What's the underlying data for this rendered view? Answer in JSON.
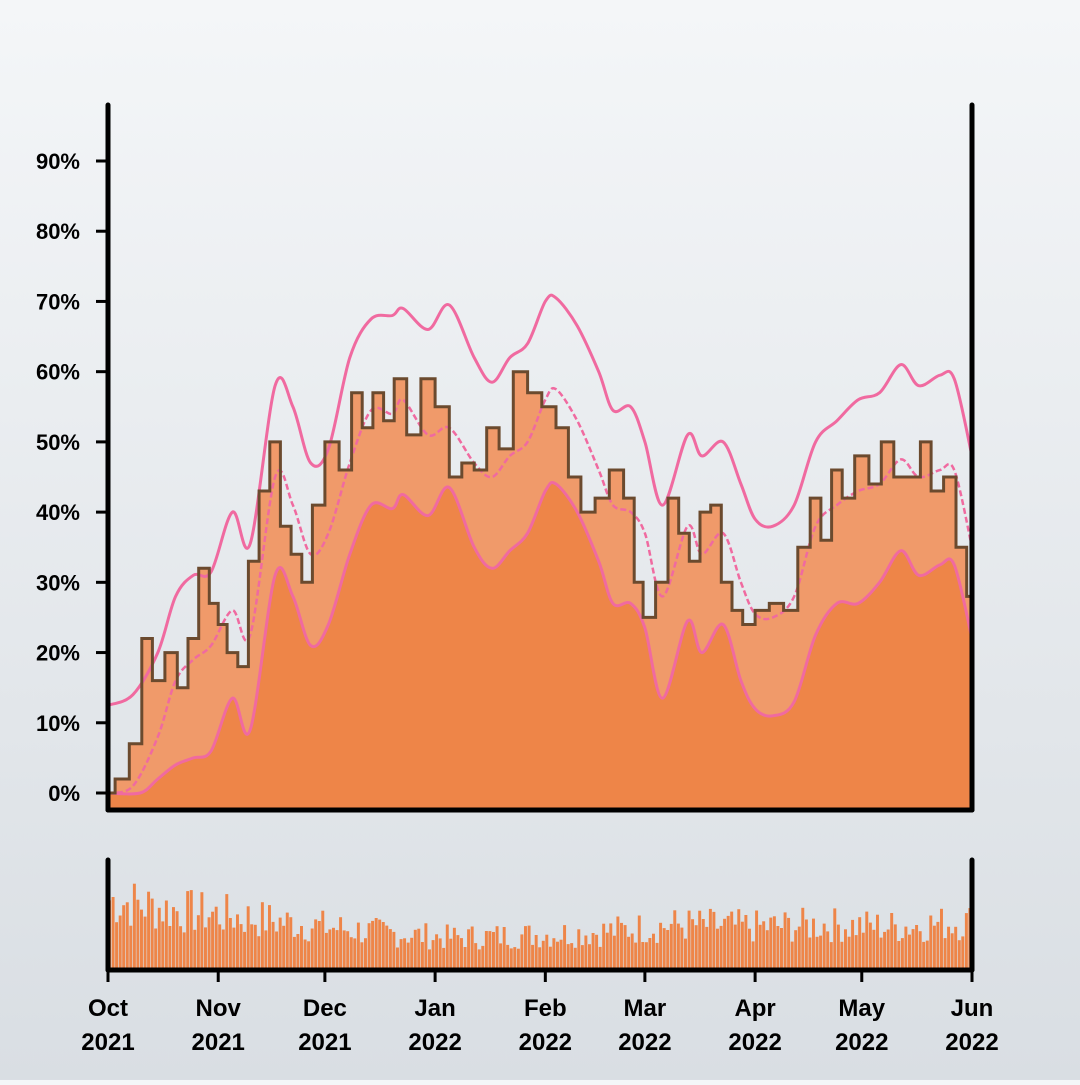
{
  "chart_data": {
    "type": "area",
    "x_range": [
      "2021-10-01",
      "2022-06-01"
    ],
    "ylim": [
      0,
      0.97
    ],
    "y_ticks": [
      0,
      0.1,
      0.2,
      0.3,
      0.4,
      0.5,
      0.6,
      0.7,
      0.8,
      0.9
    ],
    "y_tick_labels": [
      "0%",
      "10%",
      "20%",
      "30%",
      "40%",
      "50%",
      "60%",
      "70%",
      "80%",
      "90%"
    ],
    "x_ticks": [
      {
        "date": "2021-10-01",
        "month": "Oct",
        "year": "2021"
      },
      {
        "date": "2021-11-01",
        "month": "Nov",
        "year": "2021"
      },
      {
        "date": "2021-12-01",
        "month": "Dec",
        "year": "2021"
      },
      {
        "date": "2022-01-01",
        "month": "Jan",
        "year": "2022"
      },
      {
        "date": "2022-02-01",
        "month": "Feb",
        "year": "2022"
      },
      {
        "date": "2022-03-01",
        "month": "Mar",
        "year": "2022"
      },
      {
        "date": "2022-04-01",
        "month": "Apr",
        "year": "2022"
      },
      {
        "date": "2022-05-01",
        "month": "May",
        "year": "2022"
      },
      {
        "date": "2022-06-01",
        "month": "Jun",
        "year": "2022"
      }
    ],
    "grid": false,
    "colors": {
      "band_inner": "#ee8548",
      "band_outer": "#f09a6a",
      "envelope_line": "#f06aa0",
      "observed_line": "#6b4a2e",
      "volume_bars": "#ee8548"
    },
    "series": [
      {
        "role": "upper_envelope",
        "points": [
          [
            "2021-10-01",
            0.125
          ],
          [
            "2021-10-08",
            0.14
          ],
          [
            "2021-10-15",
            0.2
          ],
          [
            "2021-10-20",
            0.28
          ],
          [
            "2021-10-25",
            0.31
          ],
          [
            "2021-10-30",
            0.315
          ],
          [
            "2021-11-05",
            0.4
          ],
          [
            "2021-11-10",
            0.355
          ],
          [
            "2021-11-17",
            0.58
          ],
          [
            "2021-11-22",
            0.55
          ],
          [
            "2021-11-27",
            0.47
          ],
          [
            "2021-12-02",
            0.49
          ],
          [
            "2021-12-08",
            0.62
          ],
          [
            "2021-12-14",
            0.675
          ],
          [
            "2021-12-20",
            0.68
          ],
          [
            "2021-12-23",
            0.69
          ],
          [
            "2021-12-30",
            0.66
          ],
          [
            "2022-01-05",
            0.695
          ],
          [
            "2022-01-12",
            0.62
          ],
          [
            "2022-01-17",
            0.585
          ],
          [
            "2022-01-22",
            0.62
          ],
          [
            "2022-01-27",
            0.64
          ],
          [
            "2022-02-01",
            0.7
          ],
          [
            "2022-02-04",
            0.705
          ],
          [
            "2022-02-10",
            0.665
          ],
          [
            "2022-02-16",
            0.6
          ],
          [
            "2022-02-20",
            0.545
          ],
          [
            "2022-02-25",
            0.55
          ],
          [
            "2022-03-01",
            0.5
          ],
          [
            "2022-03-06",
            0.41
          ],
          [
            "2022-03-13",
            0.51
          ],
          [
            "2022-03-17",
            0.48
          ],
          [
            "2022-03-23",
            0.5
          ],
          [
            "2022-03-28",
            0.44
          ],
          [
            "2022-04-01",
            0.39
          ],
          [
            "2022-04-06",
            0.38
          ],
          [
            "2022-04-12",
            0.41
          ],
          [
            "2022-04-18",
            0.5
          ],
          [
            "2022-04-24",
            0.53
          ],
          [
            "2022-04-30",
            0.56
          ],
          [
            "2022-05-06",
            0.57
          ],
          [
            "2022-05-12",
            0.61
          ],
          [
            "2022-05-17",
            0.58
          ],
          [
            "2022-05-23",
            0.595
          ],
          [
            "2022-05-27",
            0.59
          ],
          [
            "2022-06-01",
            0.48
          ]
        ]
      },
      {
        "role": "outer_band_top",
        "points": [
          [
            "2021-10-01",
            0.0
          ],
          [
            "2021-10-08",
            0.01
          ],
          [
            "2021-10-15",
            0.08
          ],
          [
            "2021-10-20",
            0.16
          ],
          [
            "2021-10-25",
            0.19
          ],
          [
            "2021-10-30",
            0.21
          ],
          [
            "2021-11-05",
            0.26
          ],
          [
            "2021-11-10",
            0.225
          ],
          [
            "2021-11-17",
            0.45
          ],
          [
            "2021-11-22",
            0.41
          ],
          [
            "2021-11-27",
            0.34
          ],
          [
            "2021-12-02",
            0.37
          ],
          [
            "2021-12-08",
            0.47
          ],
          [
            "2021-12-14",
            0.545
          ],
          [
            "2021-12-20",
            0.54
          ],
          [
            "2021-12-23",
            0.56
          ],
          [
            "2021-12-30",
            0.51
          ],
          [
            "2022-01-05",
            0.52
          ],
          [
            "2022-01-12",
            0.47
          ],
          [
            "2022-01-17",
            0.45
          ],
          [
            "2022-01-22",
            0.48
          ],
          [
            "2022-01-27",
            0.5
          ],
          [
            "2022-02-01",
            0.56
          ],
          [
            "2022-02-04",
            0.575
          ],
          [
            "2022-02-10",
            0.53
          ],
          [
            "2022-02-16",
            0.46
          ],
          [
            "2022-02-20",
            0.41
          ],
          [
            "2022-02-25",
            0.4
          ],
          [
            "2022-03-01",
            0.37
          ],
          [
            "2022-03-06",
            0.28
          ],
          [
            "2022-03-13",
            0.38
          ],
          [
            "2022-03-17",
            0.34
          ],
          [
            "2022-03-23",
            0.37
          ],
          [
            "2022-03-28",
            0.3
          ],
          [
            "2022-04-01",
            0.255
          ],
          [
            "2022-04-06",
            0.25
          ],
          [
            "2022-04-12",
            0.28
          ],
          [
            "2022-04-18",
            0.38
          ],
          [
            "2022-04-24",
            0.41
          ],
          [
            "2022-04-30",
            0.43
          ],
          [
            "2022-05-06",
            0.44
          ],
          [
            "2022-05-12",
            0.475
          ],
          [
            "2022-05-17",
            0.45
          ],
          [
            "2022-05-23",
            0.46
          ],
          [
            "2022-05-27",
            0.46
          ],
          [
            "2022-06-01",
            0.35
          ]
        ]
      },
      {
        "role": "inner_band_top",
        "points": [
          [
            "2021-10-01",
            0.0
          ],
          [
            "2021-10-10",
            0.0
          ],
          [
            "2021-10-15",
            0.02
          ],
          [
            "2021-10-20",
            0.04
          ],
          [
            "2021-10-25",
            0.05
          ],
          [
            "2021-10-30",
            0.06
          ],
          [
            "2021-11-05",
            0.135
          ],
          [
            "2021-11-10",
            0.09
          ],
          [
            "2021-11-17",
            0.31
          ],
          [
            "2021-11-22",
            0.28
          ],
          [
            "2021-11-27",
            0.21
          ],
          [
            "2021-12-02",
            0.24
          ],
          [
            "2021-12-08",
            0.34
          ],
          [
            "2021-12-14",
            0.41
          ],
          [
            "2021-12-20",
            0.405
          ],
          [
            "2021-12-23",
            0.425
          ],
          [
            "2021-12-30",
            0.395
          ],
          [
            "2022-01-05",
            0.435
          ],
          [
            "2022-01-12",
            0.35
          ],
          [
            "2022-01-17",
            0.32
          ],
          [
            "2022-01-22",
            0.345
          ],
          [
            "2022-01-27",
            0.37
          ],
          [
            "2022-02-01",
            0.43
          ],
          [
            "2022-02-04",
            0.44
          ],
          [
            "2022-02-10",
            0.4
          ],
          [
            "2022-02-16",
            0.33
          ],
          [
            "2022-02-20",
            0.27
          ],
          [
            "2022-02-25",
            0.27
          ],
          [
            "2022-03-01",
            0.235
          ],
          [
            "2022-03-06",
            0.135
          ],
          [
            "2022-03-13",
            0.245
          ],
          [
            "2022-03-17",
            0.2
          ],
          [
            "2022-03-23",
            0.24
          ],
          [
            "2022-03-28",
            0.16
          ],
          [
            "2022-04-01",
            0.12
          ],
          [
            "2022-04-06",
            0.11
          ],
          [
            "2022-04-12",
            0.13
          ],
          [
            "2022-04-18",
            0.225
          ],
          [
            "2022-04-24",
            0.27
          ],
          [
            "2022-04-30",
            0.27
          ],
          [
            "2022-05-06",
            0.3
          ],
          [
            "2022-05-12",
            0.345
          ],
          [
            "2022-05-17",
            0.31
          ],
          [
            "2022-05-23",
            0.325
          ],
          [
            "2022-05-27",
            0.325
          ],
          [
            "2022-06-01",
            0.22
          ]
        ]
      },
      {
        "role": "observed",
        "points": [
          [
            "2021-10-01",
            0.0
          ],
          [
            "2021-10-05",
            0.02
          ],
          [
            "2021-10-09",
            0.07
          ],
          [
            "2021-10-12",
            0.22
          ],
          [
            "2021-10-15",
            0.16
          ],
          [
            "2021-10-19",
            0.2
          ],
          [
            "2021-10-22",
            0.15
          ],
          [
            "2021-10-25",
            0.22
          ],
          [
            "2021-10-28",
            0.32
          ],
          [
            "2021-10-31",
            0.27
          ],
          [
            "2021-11-02",
            0.24
          ],
          [
            "2021-11-05",
            0.2
          ],
          [
            "2021-11-08",
            0.18
          ],
          [
            "2021-11-11",
            0.33
          ],
          [
            "2021-11-14",
            0.43
          ],
          [
            "2021-11-17",
            0.5
          ],
          [
            "2021-11-20",
            0.38
          ],
          [
            "2021-11-23",
            0.34
          ],
          [
            "2021-11-26",
            0.3
          ],
          [
            "2021-11-29",
            0.41
          ],
          [
            "2021-12-03",
            0.5
          ],
          [
            "2021-12-07",
            0.46
          ],
          [
            "2021-12-10",
            0.57
          ],
          [
            "2021-12-13",
            0.52
          ],
          [
            "2021-12-16",
            0.57
          ],
          [
            "2021-12-19",
            0.53
          ],
          [
            "2021-12-22",
            0.59
          ],
          [
            "2021-12-26",
            0.51
          ],
          [
            "2021-12-30",
            0.59
          ],
          [
            "2022-01-03",
            0.55
          ],
          [
            "2022-01-07",
            0.45
          ],
          [
            "2022-01-10",
            0.47
          ],
          [
            "2022-01-14",
            0.46
          ],
          [
            "2022-01-17",
            0.52
          ],
          [
            "2022-01-21",
            0.49
          ],
          [
            "2022-01-25",
            0.6
          ],
          [
            "2022-01-29",
            0.57
          ],
          [
            "2022-02-02",
            0.55
          ],
          [
            "2022-02-06",
            0.52
          ],
          [
            "2022-02-09",
            0.45
          ],
          [
            "2022-02-13",
            0.4
          ],
          [
            "2022-02-17",
            0.42
          ],
          [
            "2022-02-21",
            0.46
          ],
          [
            "2022-02-25",
            0.42
          ],
          [
            "2022-02-27",
            0.3
          ],
          [
            "2022-03-02",
            0.25
          ],
          [
            "2022-03-06",
            0.3
          ],
          [
            "2022-03-09",
            0.42
          ],
          [
            "2022-03-12",
            0.37
          ],
          [
            "2022-03-15",
            0.33
          ],
          [
            "2022-03-18",
            0.4
          ],
          [
            "2022-03-21",
            0.41
          ],
          [
            "2022-03-24",
            0.3
          ],
          [
            "2022-03-27",
            0.26
          ],
          [
            "2022-03-30",
            0.24
          ],
          [
            "2022-04-03",
            0.26
          ],
          [
            "2022-04-07",
            0.27
          ],
          [
            "2022-04-11",
            0.26
          ],
          [
            "2022-04-15",
            0.35
          ],
          [
            "2022-04-18",
            0.42
          ],
          [
            "2022-04-21",
            0.36
          ],
          [
            "2022-04-24",
            0.46
          ],
          [
            "2022-04-27",
            0.42
          ],
          [
            "2022-05-01",
            0.48
          ],
          [
            "2022-05-05",
            0.44
          ],
          [
            "2022-05-08",
            0.5
          ],
          [
            "2022-05-12",
            0.45
          ],
          [
            "2022-05-16",
            0.45
          ],
          [
            "2022-05-19",
            0.5
          ],
          [
            "2022-05-22",
            0.43
          ],
          [
            "2022-05-26",
            0.45
          ],
          [
            "2022-05-29",
            0.35
          ],
          [
            "2022-06-01",
            0.28
          ]
        ]
      }
    ],
    "volume_panel": {
      "type": "bar",
      "description_of_levels": "daily bars, relative height 0-1",
      "segments": [
        [
          "2021-10-01",
          0.65
        ],
        [
          "2021-10-20",
          0.55
        ],
        [
          "2021-11-05",
          0.5
        ],
        [
          "2021-11-25",
          0.42
        ],
        [
          "2021-12-15",
          0.35
        ],
        [
          "2022-01-05",
          0.3
        ],
        [
          "2022-01-25",
          0.32
        ],
        [
          "2022-02-15",
          0.35
        ],
        [
          "2022-03-10",
          0.42
        ],
        [
          "2022-04-01",
          0.4
        ],
        [
          "2022-04-20",
          0.42
        ],
        [
          "2022-05-10",
          0.4
        ],
        [
          "2022-06-01",
          0.45
        ]
      ]
    }
  }
}
